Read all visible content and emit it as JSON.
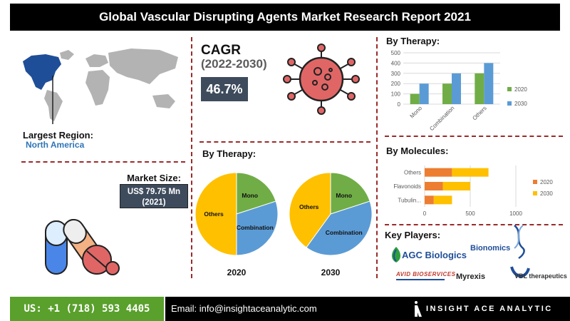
{
  "title": "Global Vascular Disrupting Agents Market Research Report 2021",
  "largest_region": {
    "label": "Largest Region:",
    "value": "North America"
  },
  "market_size": {
    "label": "Market Size:",
    "value_line1": "US$ 79.75 Mn",
    "value_line2": "(2021)"
  },
  "cagr": {
    "title": "CAGR",
    "years": "(2022-2030)",
    "value": "46.7%"
  },
  "pie_section": {
    "title": "By Therapy:"
  },
  "key_players": {
    "title": "Key Players:",
    "logos": [
      "AGC Biologics",
      "Bionomics",
      "AVID BIOSERVICES",
      "Myrexis",
      "VBL therapeutics"
    ]
  },
  "footer": {
    "phone": "US: +1 (718) 593 4405",
    "email": "Email: info@insightaceanalytic.com",
    "brand": "INSIGHT ACE ANALYTIC"
  },
  "colors": {
    "2020": "#70ad47",
    "2030": "#5b9bd5",
    "bar2020": "#ed7d31",
    "bar2030": "#ffc000",
    "accent": "#9b2a2a"
  },
  "chart_data": [
    {
      "type": "bar",
      "title": "By Therapy:",
      "categories": [
        "Mono",
        "Combination",
        "Others"
      ],
      "series": [
        {
          "name": "2020",
          "values": [
            100,
            200,
            300
          ]
        },
        {
          "name": "2030",
          "values": [
            200,
            300,
            400
          ]
        }
      ],
      "ylim": [
        0,
        500
      ],
      "yticks": [
        0,
        100,
        200,
        300,
        400,
        500
      ],
      "legend": "right"
    },
    {
      "type": "bar",
      "orientation": "horizontal",
      "title": "By Molecules:",
      "categories": [
        "Others",
        "Flavonoids",
        "Tubulin..."
      ],
      "series": [
        {
          "name": "2020",
          "values": [
            300,
            200,
            100
          ]
        },
        {
          "name": "2030",
          "values": [
            400,
            300,
            200
          ]
        }
      ],
      "stacked": true,
      "xlim": [
        0,
        1000
      ],
      "xticks": [
        0,
        500,
        1000
      ],
      "legend": "right"
    },
    {
      "type": "pie",
      "label": "2020",
      "slices": [
        {
          "name": "Mono",
          "value": 20
        },
        {
          "name": "Combination",
          "value": 30
        },
        {
          "name": "Others",
          "value": 50
        }
      ]
    },
    {
      "type": "pie",
      "label": "2030",
      "slices": [
        {
          "name": "Mono",
          "value": 20
        },
        {
          "name": "Combination",
          "value": 40
        },
        {
          "name": "Others",
          "value": 40
        }
      ]
    }
  ]
}
